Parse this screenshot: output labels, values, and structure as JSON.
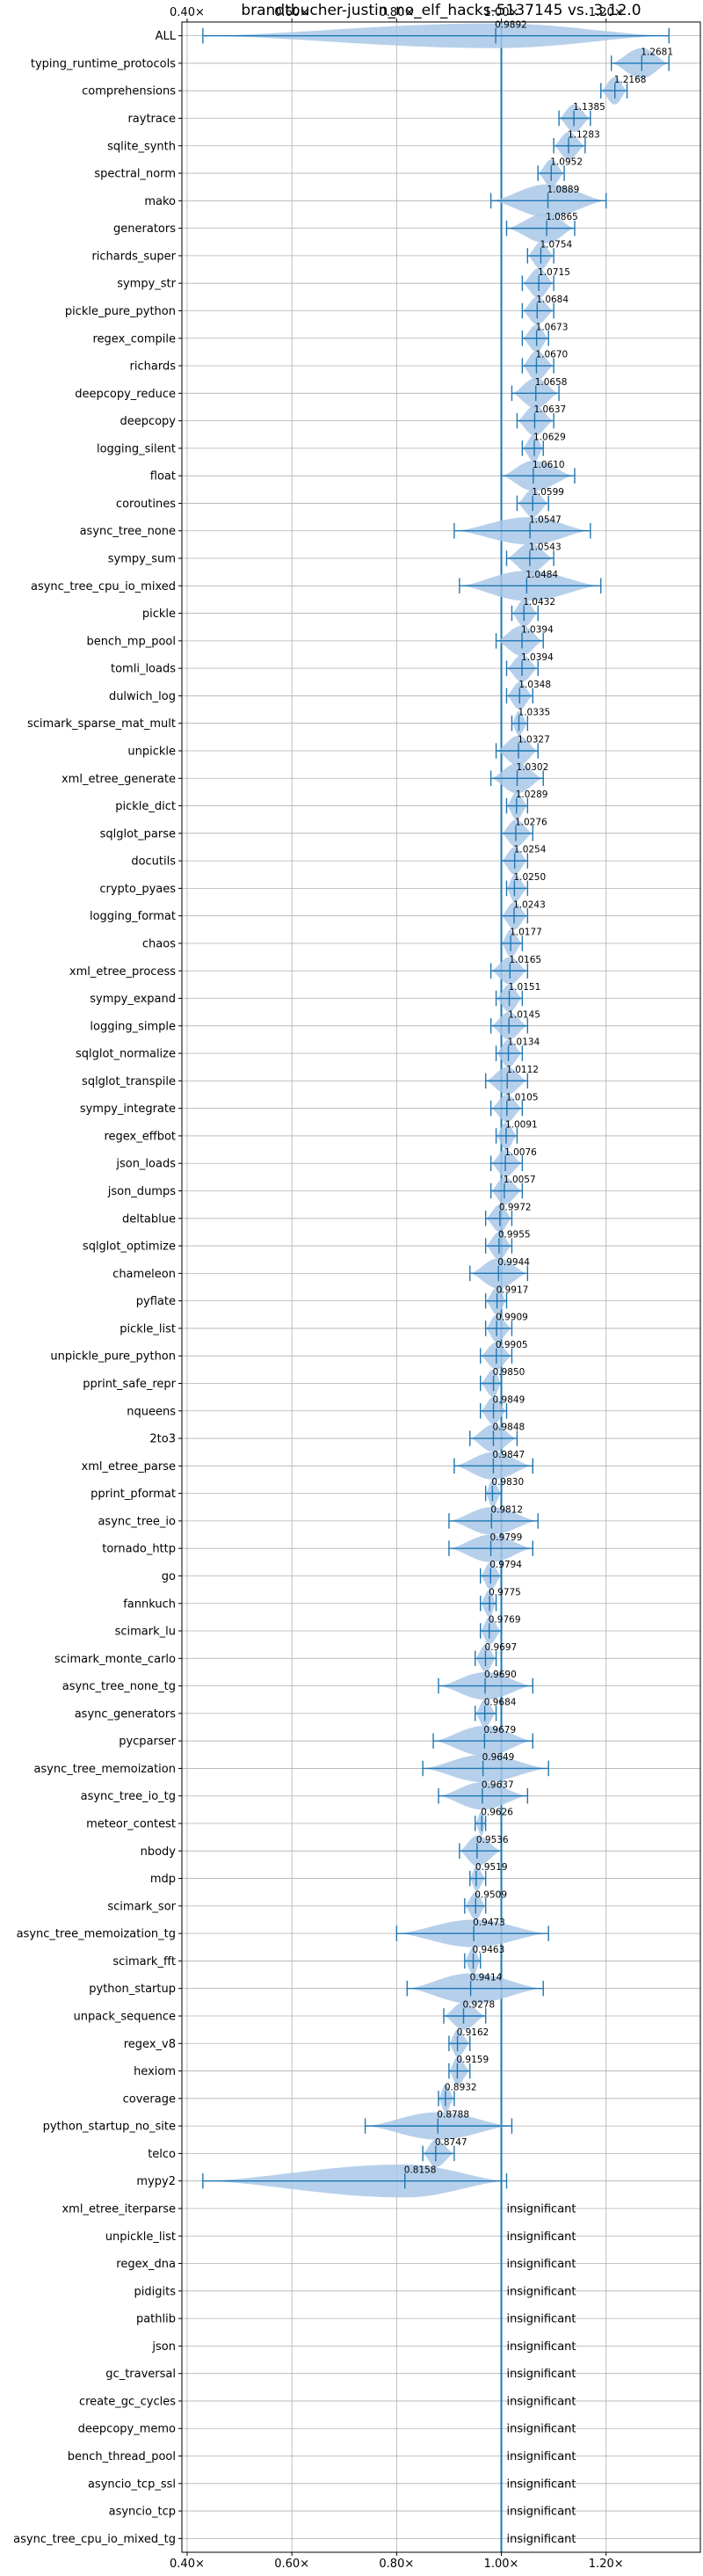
{
  "chart_data": {
    "type": "violin",
    "title": "brandtbucher-justin_no_elf_hacks-5137145 vs. 3.12.0",
    "xlim": [
      0.39,
      1.38
    ],
    "x_ticks": [
      0.4,
      0.6,
      0.8,
      1.0,
      1.2
    ],
    "x_tick_labels": [
      "0.40×",
      "0.60×",
      "0.80×",
      "1.00×",
      "1.20×"
    ],
    "reference_line": 1.0,
    "grid": true,
    "colors": {
      "violin": "#a9c8e8",
      "accent": "#1f77b4",
      "grid": "#b0b0b0"
    },
    "rows": [
      {
        "name": "ALL",
        "median": 0.9892,
        "label": "0.9892",
        "min": 0.43,
        "max": 1.32,
        "width": 0.45,
        "sig": true
      },
      {
        "name": "typing_runtime_protocols",
        "median": 1.2681,
        "label": "1.2681",
        "min": 1.21,
        "max": 1.32,
        "width": 0.55,
        "sig": true
      },
      {
        "name": "comprehensions",
        "median": 1.2168,
        "label": "1.2168",
        "min": 1.19,
        "max": 1.24,
        "width": 0.5,
        "sig": true
      },
      {
        "name": "raytrace",
        "median": 1.1385,
        "label": "1.1385",
        "min": 1.11,
        "max": 1.17,
        "width": 0.5,
        "sig": true
      },
      {
        "name": "sqlite_synth",
        "median": 1.1283,
        "label": "1.1283",
        "min": 1.1,
        "max": 1.16,
        "width": 0.5,
        "sig": true
      },
      {
        "name": "spectral_norm",
        "median": 1.0952,
        "label": "1.0952",
        "min": 1.07,
        "max": 1.12,
        "width": 0.5,
        "sig": true
      },
      {
        "name": "mako",
        "median": 1.0889,
        "label": "1.0889",
        "min": 0.98,
        "max": 1.2,
        "width": 0.6,
        "sig": true
      },
      {
        "name": "generators",
        "median": 1.0865,
        "label": "1.0865",
        "min": 1.01,
        "max": 1.14,
        "width": 0.55,
        "sig": true
      },
      {
        "name": "richards_super",
        "median": 1.0754,
        "label": "1.0754",
        "min": 1.05,
        "max": 1.1,
        "width": 0.5,
        "sig": true
      },
      {
        "name": "sympy_str",
        "median": 1.0715,
        "label": "1.0715",
        "min": 1.04,
        "max": 1.1,
        "width": 0.55,
        "sig": true
      },
      {
        "name": "pickle_pure_python",
        "median": 1.0684,
        "label": "1.0684",
        "min": 1.04,
        "max": 1.1,
        "width": 0.5,
        "sig": true
      },
      {
        "name": "regex_compile",
        "median": 1.0673,
        "label": "1.0673",
        "min": 1.04,
        "max": 1.09,
        "width": 0.5,
        "sig": true
      },
      {
        "name": "richards",
        "median": 1.067,
        "label": "1.0670",
        "min": 1.04,
        "max": 1.1,
        "width": 0.55,
        "sig": true
      },
      {
        "name": "deepcopy_reduce",
        "median": 1.0658,
        "label": "1.0658",
        "min": 1.02,
        "max": 1.11,
        "width": 0.55,
        "sig": true
      },
      {
        "name": "deepcopy",
        "median": 1.0637,
        "label": "1.0637",
        "min": 1.03,
        "max": 1.1,
        "width": 0.55,
        "sig": true
      },
      {
        "name": "logging_silent",
        "median": 1.0629,
        "label": "1.0629",
        "min": 1.04,
        "max": 1.08,
        "width": 0.5,
        "sig": true
      },
      {
        "name": "float",
        "median": 1.061,
        "label": "1.0610",
        "min": 1.0,
        "max": 1.14,
        "width": 0.55,
        "sig": true
      },
      {
        "name": "coroutines",
        "median": 1.0599,
        "label": "1.0599",
        "min": 1.03,
        "max": 1.09,
        "width": 0.5,
        "sig": true
      },
      {
        "name": "async_tree_none",
        "median": 1.0547,
        "label": "1.0547",
        "min": 0.91,
        "max": 1.17,
        "width": 0.5,
        "sig": true
      },
      {
        "name": "sympy_sum",
        "median": 1.0543,
        "label": "1.0543",
        "min": 1.01,
        "max": 1.1,
        "width": 0.55,
        "sig": true
      },
      {
        "name": "async_tree_cpu_io_mixed",
        "median": 1.0484,
        "label": "1.0484",
        "min": 0.92,
        "max": 1.19,
        "width": 0.55,
        "sig": true
      },
      {
        "name": "pickle",
        "median": 1.0432,
        "label": "1.0432",
        "min": 1.02,
        "max": 1.07,
        "width": 0.5,
        "sig": true
      },
      {
        "name": "bench_mp_pool",
        "median": 1.0394,
        "label": "1.0394",
        "min": 0.99,
        "max": 1.08,
        "width": 0.55,
        "sig": true
      },
      {
        "name": "tomli_loads",
        "median": 1.0394,
        "label": "1.0394",
        "min": 1.01,
        "max": 1.07,
        "width": 0.5,
        "sig": true
      },
      {
        "name": "dulwich_log",
        "median": 1.0348,
        "label": "1.0348",
        "min": 1.01,
        "max": 1.06,
        "width": 0.5,
        "sig": true
      },
      {
        "name": "scimark_sparse_mat_mult",
        "median": 1.0335,
        "label": "1.0335",
        "min": 1.02,
        "max": 1.05,
        "width": 0.45,
        "sig": true
      },
      {
        "name": "unpickle",
        "median": 1.0327,
        "label": "1.0327",
        "min": 0.99,
        "max": 1.07,
        "width": 0.55,
        "sig": true
      },
      {
        "name": "xml_etree_generate",
        "median": 1.0302,
        "label": "1.0302",
        "min": 0.98,
        "max": 1.08,
        "width": 0.55,
        "sig": true
      },
      {
        "name": "pickle_dict",
        "median": 1.0289,
        "label": "1.0289",
        "min": 1.01,
        "max": 1.05,
        "width": 0.5,
        "sig": true
      },
      {
        "name": "sqlglot_parse",
        "median": 1.0276,
        "label": "1.0276",
        "min": 1.0,
        "max": 1.06,
        "width": 0.5,
        "sig": true
      },
      {
        "name": "docutils",
        "median": 1.0254,
        "label": "1.0254",
        "min": 1.0,
        "max": 1.05,
        "width": 0.5,
        "sig": true
      },
      {
        "name": "crypto_pyaes",
        "median": 1.025,
        "label": "1.0250",
        "min": 1.01,
        "max": 1.05,
        "width": 0.5,
        "sig": true
      },
      {
        "name": "logging_format",
        "median": 1.0243,
        "label": "1.0243",
        "min": 1.0,
        "max": 1.05,
        "width": 0.5,
        "sig": true
      },
      {
        "name": "chaos",
        "median": 1.0177,
        "label": "1.0177",
        "min": 1.0,
        "max": 1.04,
        "width": 0.5,
        "sig": true
      },
      {
        "name": "xml_etree_process",
        "median": 1.0165,
        "label": "1.0165",
        "min": 0.98,
        "max": 1.05,
        "width": 0.5,
        "sig": true
      },
      {
        "name": "sympy_expand",
        "median": 1.0151,
        "label": "1.0151",
        "min": 0.99,
        "max": 1.04,
        "width": 0.5,
        "sig": true
      },
      {
        "name": "logging_simple",
        "median": 1.0145,
        "label": "1.0145",
        "min": 0.98,
        "max": 1.05,
        "width": 0.5,
        "sig": true
      },
      {
        "name": "sqlglot_normalize",
        "median": 1.0134,
        "label": "1.0134",
        "min": 0.99,
        "max": 1.04,
        "width": 0.5,
        "sig": true
      },
      {
        "name": "sqlglot_transpile",
        "median": 1.0112,
        "label": "1.0112",
        "min": 0.97,
        "max": 1.05,
        "width": 0.5,
        "sig": true
      },
      {
        "name": "sympy_integrate",
        "median": 1.0105,
        "label": "1.0105",
        "min": 0.98,
        "max": 1.04,
        "width": 0.5,
        "sig": true
      },
      {
        "name": "regex_effbot",
        "median": 1.0091,
        "label": "1.0091",
        "min": 0.99,
        "max": 1.03,
        "width": 0.5,
        "sig": true
      },
      {
        "name": "json_loads",
        "median": 1.0076,
        "label": "1.0076",
        "min": 0.98,
        "max": 1.04,
        "width": 0.5,
        "sig": true
      },
      {
        "name": "json_dumps",
        "median": 1.0057,
        "label": "1.0057",
        "min": 0.98,
        "max": 1.04,
        "width": 0.5,
        "sig": true
      },
      {
        "name": "deltablue",
        "median": 0.9972,
        "label": "0.9972",
        "min": 0.97,
        "max": 1.02,
        "width": 0.5,
        "sig": true
      },
      {
        "name": "sqlglot_optimize",
        "median": 0.9955,
        "label": "0.9955",
        "min": 0.97,
        "max": 1.02,
        "width": 0.5,
        "sig": true
      },
      {
        "name": "chameleon",
        "median": 0.9944,
        "label": "0.9944",
        "min": 0.94,
        "max": 1.05,
        "width": 0.55,
        "sig": true
      },
      {
        "name": "pyflate",
        "median": 0.9917,
        "label": "0.9917",
        "min": 0.97,
        "max": 1.01,
        "width": 0.5,
        "sig": true
      },
      {
        "name": "pickle_list",
        "median": 0.9909,
        "label": "0.9909",
        "min": 0.97,
        "max": 1.02,
        "width": 0.5,
        "sig": true
      },
      {
        "name": "unpickle_pure_python",
        "median": 0.9905,
        "label": "0.9905",
        "min": 0.96,
        "max": 1.02,
        "width": 0.5,
        "sig": true
      },
      {
        "name": "pprint_safe_repr",
        "median": 0.985,
        "label": "0.9850",
        "min": 0.96,
        "max": 1.0,
        "width": 0.5,
        "sig": true
      },
      {
        "name": "nqueens",
        "median": 0.9849,
        "label": "0.9849",
        "min": 0.96,
        "max": 1.01,
        "width": 0.5,
        "sig": true
      },
      {
        "name": "2to3",
        "median": 0.9848,
        "label": "0.9848",
        "min": 0.94,
        "max": 1.03,
        "width": 0.5,
        "sig": true
      },
      {
        "name": "xml_etree_parse",
        "median": 0.9847,
        "label": "0.9847",
        "min": 0.91,
        "max": 1.06,
        "width": 0.5,
        "sig": true
      },
      {
        "name": "pprint_pformat",
        "median": 0.983,
        "label": "0.9830",
        "min": 0.97,
        "max": 1.0,
        "width": 0.5,
        "sig": true
      },
      {
        "name": "async_tree_io",
        "median": 0.9812,
        "label": "0.9812",
        "min": 0.9,
        "max": 1.07,
        "width": 0.5,
        "sig": true
      },
      {
        "name": "tornado_http",
        "median": 0.9799,
        "label": "0.9799",
        "min": 0.9,
        "max": 1.06,
        "width": 0.5,
        "sig": true
      },
      {
        "name": "go",
        "median": 0.9794,
        "label": "0.9794",
        "min": 0.96,
        "max": 1.0,
        "width": 0.5,
        "sig": true
      },
      {
        "name": "fannkuch",
        "median": 0.9775,
        "label": "0.9775",
        "min": 0.96,
        "max": 0.99,
        "width": 0.5,
        "sig": true
      },
      {
        "name": "scimark_lu",
        "median": 0.9769,
        "label": "0.9769",
        "min": 0.96,
        "max": 1.0,
        "width": 0.5,
        "sig": true
      },
      {
        "name": "scimark_monte_carlo",
        "median": 0.9697,
        "label": "0.9697",
        "min": 0.95,
        "max": 0.99,
        "width": 0.5,
        "sig": true
      },
      {
        "name": "async_tree_none_tg",
        "median": 0.969,
        "label": "0.9690",
        "min": 0.88,
        "max": 1.06,
        "width": 0.5,
        "sig": true
      },
      {
        "name": "async_generators",
        "median": 0.9684,
        "label": "0.9684",
        "min": 0.95,
        "max": 0.99,
        "width": 0.5,
        "sig": true
      },
      {
        "name": "pycparser",
        "median": 0.9679,
        "label": "0.9679",
        "min": 0.87,
        "max": 1.06,
        "width": 0.55,
        "sig": true
      },
      {
        "name": "async_tree_memoization",
        "median": 0.9649,
        "label": "0.9649",
        "min": 0.85,
        "max": 1.09,
        "width": 0.5,
        "sig": true
      },
      {
        "name": "async_tree_io_tg",
        "median": 0.9637,
        "label": "0.9637",
        "min": 0.88,
        "max": 1.05,
        "width": 0.5,
        "sig": true
      },
      {
        "name": "meteor_contest",
        "median": 0.9626,
        "label": "0.9626",
        "min": 0.95,
        "max": 0.97,
        "width": 0.45,
        "sig": true
      },
      {
        "name": "nbody",
        "median": 0.9536,
        "label": "0.9536",
        "min": 0.92,
        "max": 1.0,
        "width": 0.55,
        "sig": true
      },
      {
        "name": "mdp",
        "median": 0.9519,
        "label": "0.9519",
        "min": 0.94,
        "max": 0.97,
        "width": 0.45,
        "sig": true
      },
      {
        "name": "scimark_sor",
        "median": 0.9509,
        "label": "0.9509",
        "min": 0.93,
        "max": 0.97,
        "width": 0.5,
        "sig": true
      },
      {
        "name": "async_tree_memoization_tg",
        "median": 0.9473,
        "label": "0.9473",
        "min": 0.8,
        "max": 1.09,
        "width": 0.5,
        "sig": true
      },
      {
        "name": "scimark_fft",
        "median": 0.9463,
        "label": "0.9463",
        "min": 0.93,
        "max": 0.96,
        "width": 0.5,
        "sig": true
      },
      {
        "name": "python_startup",
        "median": 0.9414,
        "label": "0.9414",
        "min": 0.82,
        "max": 1.08,
        "width": 0.55,
        "sig": true
      },
      {
        "name": "unpack_sequence",
        "median": 0.9278,
        "label": "0.9278",
        "min": 0.89,
        "max": 0.97,
        "width": 0.5,
        "sig": true
      },
      {
        "name": "regex_v8",
        "median": 0.9162,
        "label": "0.9162",
        "min": 0.9,
        "max": 0.94,
        "width": 0.5,
        "sig": true
      },
      {
        "name": "hexiom",
        "median": 0.9159,
        "label": "0.9159",
        "min": 0.9,
        "max": 0.94,
        "width": 0.5,
        "sig": true
      },
      {
        "name": "coverage",
        "median": 0.8932,
        "label": "0.8932",
        "min": 0.88,
        "max": 0.91,
        "width": 0.5,
        "sig": true
      },
      {
        "name": "python_startup_no_site",
        "median": 0.8788,
        "label": "0.8788",
        "min": 0.74,
        "max": 1.02,
        "width": 0.5,
        "sig": true
      },
      {
        "name": "telco",
        "median": 0.8747,
        "label": "0.8747",
        "min": 0.85,
        "max": 0.91,
        "width": 0.5,
        "sig": true
      },
      {
        "name": "mypy2",
        "median": 0.8158,
        "label": "0.8158",
        "min": 0.43,
        "max": 1.01,
        "width": 0.6,
        "sig": true
      },
      {
        "name": "xml_etree_iterparse",
        "label": "insignificant",
        "sig": false
      },
      {
        "name": "unpickle_list",
        "label": "insignificant",
        "sig": false
      },
      {
        "name": "regex_dna",
        "label": "insignificant",
        "sig": false
      },
      {
        "name": "pidigits",
        "label": "insignificant",
        "sig": false
      },
      {
        "name": "pathlib",
        "label": "insignificant",
        "sig": false
      },
      {
        "name": "json",
        "label": "insignificant",
        "sig": false
      },
      {
        "name": "gc_traversal",
        "label": "insignificant",
        "sig": false
      },
      {
        "name": "create_gc_cycles",
        "label": "insignificant",
        "sig": false
      },
      {
        "name": "deepcopy_memo",
        "label": "insignificant",
        "sig": false
      },
      {
        "name": "bench_thread_pool",
        "label": "insignificant",
        "sig": false
      },
      {
        "name": "asyncio_tcp_ssl",
        "label": "insignificant",
        "sig": false
      },
      {
        "name": "asyncio_tcp",
        "label": "insignificant",
        "sig": false
      },
      {
        "name": "async_tree_cpu_io_mixed_tg",
        "label": "insignificant",
        "sig": false
      }
    ]
  }
}
